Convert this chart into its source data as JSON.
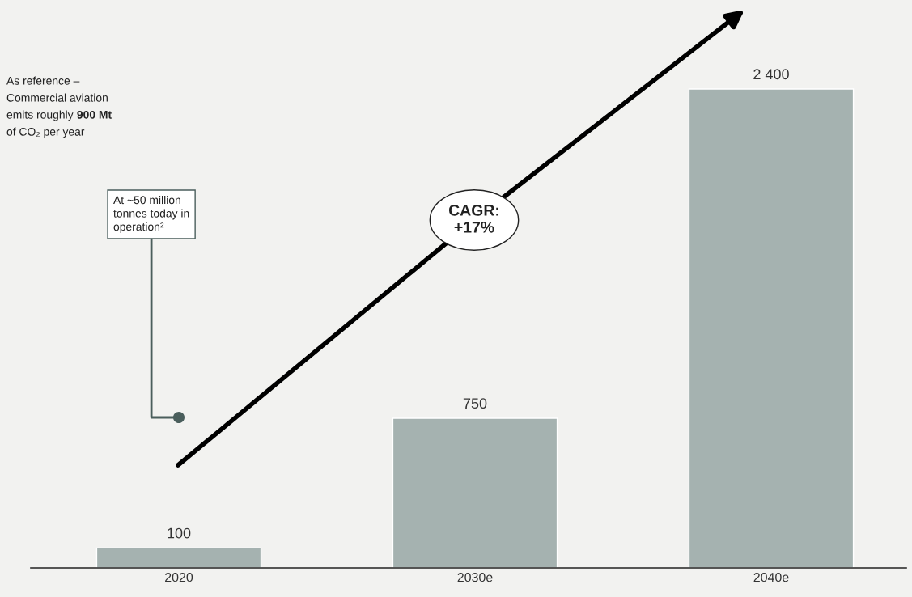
{
  "chart_data": {
    "type": "bar",
    "categories": [
      "2020",
      "2030e",
      "2040e"
    ],
    "values": [
      100,
      750,
      2400
    ],
    "color": "#a5b2b0",
    "data_labels": true,
    "annotations": [
      "As reference –",
      "Commercial aviation",
      "emits roughly ",
      "900 Mt",
      "of CO₂ per year",
      "At ~50 million\ntonnes today in\noperation²",
      "CAGR:\n+17%"
    ]
  }
}
